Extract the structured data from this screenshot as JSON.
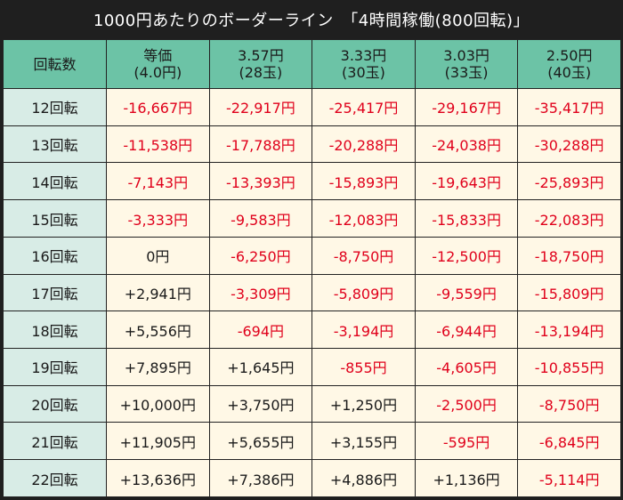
{
  "title": "1000円あたりのボーダーライン　「4時間稼働(800回転)」",
  "header": {
    "corner": "回転数",
    "columns": [
      {
        "line1": "等価",
        "line2": "(4.0円)"
      },
      {
        "line1": "3.57円",
        "line2": "(28玉)"
      },
      {
        "line1": "3.33円",
        "line2": "(30玉)"
      },
      {
        "line1": "3.03円",
        "line2": "(33玉)"
      },
      {
        "line1": "2.50円",
        "line2": "(40玉)"
      }
    ]
  },
  "rows": [
    {
      "label": "12回転",
      "cells": [
        "-16,667円",
        "-22,917円",
        "-25,417円",
        "-29,167円",
        "-35,417円"
      ]
    },
    {
      "label": "13回転",
      "cells": [
        "-11,538円",
        "-17,788円",
        "-20,288円",
        "-24,038円",
        "-30,288円"
      ]
    },
    {
      "label": "14回転",
      "cells": [
        "-7,143円",
        "-13,393円",
        "-15,893円",
        "-19,643円",
        "-25,893円"
      ]
    },
    {
      "label": "15回転",
      "cells": [
        "-3,333円",
        "-9,583円",
        "-12,083円",
        "-15,833円",
        "-22,083円"
      ]
    },
    {
      "label": "16回転",
      "cells": [
        "0円",
        "-6,250円",
        "-8,750円",
        "-12,500円",
        "-18,750円"
      ]
    },
    {
      "label": "17回転",
      "cells": [
        "+2,941円",
        "-3,309円",
        "-5,809円",
        "-9,559円",
        "-15,809円"
      ]
    },
    {
      "label": "18回転",
      "cells": [
        "+5,556円",
        "-694円",
        "-3,194円",
        "-6,944円",
        "-13,194円"
      ]
    },
    {
      "label": "19回転",
      "cells": [
        "+7,895円",
        "+1,645円",
        "-855円",
        "-4,605円",
        "-10,855円"
      ]
    },
    {
      "label": "20回転",
      "cells": [
        "+10,000円",
        "+3,750円",
        "+1,250円",
        "-2,500円",
        "-8,750円"
      ]
    },
    {
      "label": "21回転",
      "cells": [
        "+11,905円",
        "+5,655円",
        "+3,155円",
        "-595円",
        "-6,845円"
      ]
    },
    {
      "label": "22回転",
      "cells": [
        "+13,636円",
        "+7,386円",
        "+4,886円",
        "+1,136円",
        "-5,114円"
      ]
    }
  ],
  "colors": {
    "title_bg": "#1f1f1f",
    "header_bg": "#6cc3a6",
    "rowhead_bg": "#d8ece6",
    "cell_bg": "#fff8e6",
    "negative_text": "#e0001b",
    "positive_text": "#1a1a1a"
  }
}
